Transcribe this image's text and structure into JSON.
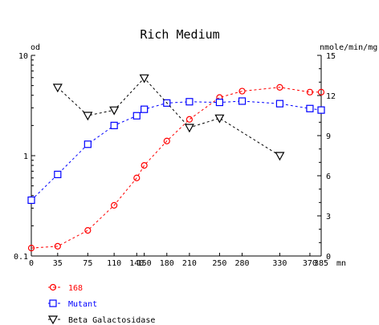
{
  "chart_data": {
    "type": "line",
    "title": "Rich Medium",
    "ylabel_left": "od",
    "ylabel_right": "nmole/min/mg",
    "xlabel": "mn",
    "x_ticks": [
      0,
      35,
      75,
      110,
      140,
      150,
      180,
      210,
      250,
      280,
      330,
      370,
      385
    ],
    "xlim": [
      0,
      385
    ],
    "left_axis": {
      "scale": "log",
      "ylim": [
        0.1,
        10
      ],
      "ticks": [
        "0.1",
        "1",
        "10"
      ]
    },
    "right_axis": {
      "scale": "linear",
      "ylim": [
        0,
        15
      ],
      "ticks": [
        "0",
        "3",
        "6",
        "9",
        "12",
        "15"
      ]
    },
    "grid": false,
    "legend_position": "bottom-left",
    "series": [
      {
        "name": "168",
        "axis": "left",
        "color": "#ff0000",
        "marker": "circle",
        "x": [
          0,
          35,
          75,
          110,
          140,
          150,
          180,
          210,
          250,
          280,
          330,
          370,
          385
        ],
        "y": [
          0.12,
          0.125,
          0.18,
          0.32,
          0.6,
          0.8,
          1.4,
          2.3,
          3.8,
          4.4,
          4.8,
          4.3,
          4.3
        ]
      },
      {
        "name": "Mutant",
        "axis": "left",
        "color": "#0000ff",
        "marker": "square",
        "x": [
          0,
          35,
          75,
          110,
          140,
          150,
          180,
          210,
          250,
          280,
          330,
          370,
          385
        ],
        "y": [
          0.36,
          0.65,
          1.3,
          2.0,
          2.5,
          2.9,
          3.35,
          3.45,
          3.4,
          3.5,
          3.3,
          2.95,
          2.85
        ]
      },
      {
        "name": "Beta Galactosidase",
        "axis": "right",
        "color": "#000000",
        "marker": "triangle-down",
        "x": [
          35,
          75,
          110,
          150,
          210,
          250,
          330
        ],
        "y": [
          12.6,
          10.5,
          10.9,
          13.3,
          9.6,
          10.3,
          7.5
        ]
      }
    ]
  }
}
